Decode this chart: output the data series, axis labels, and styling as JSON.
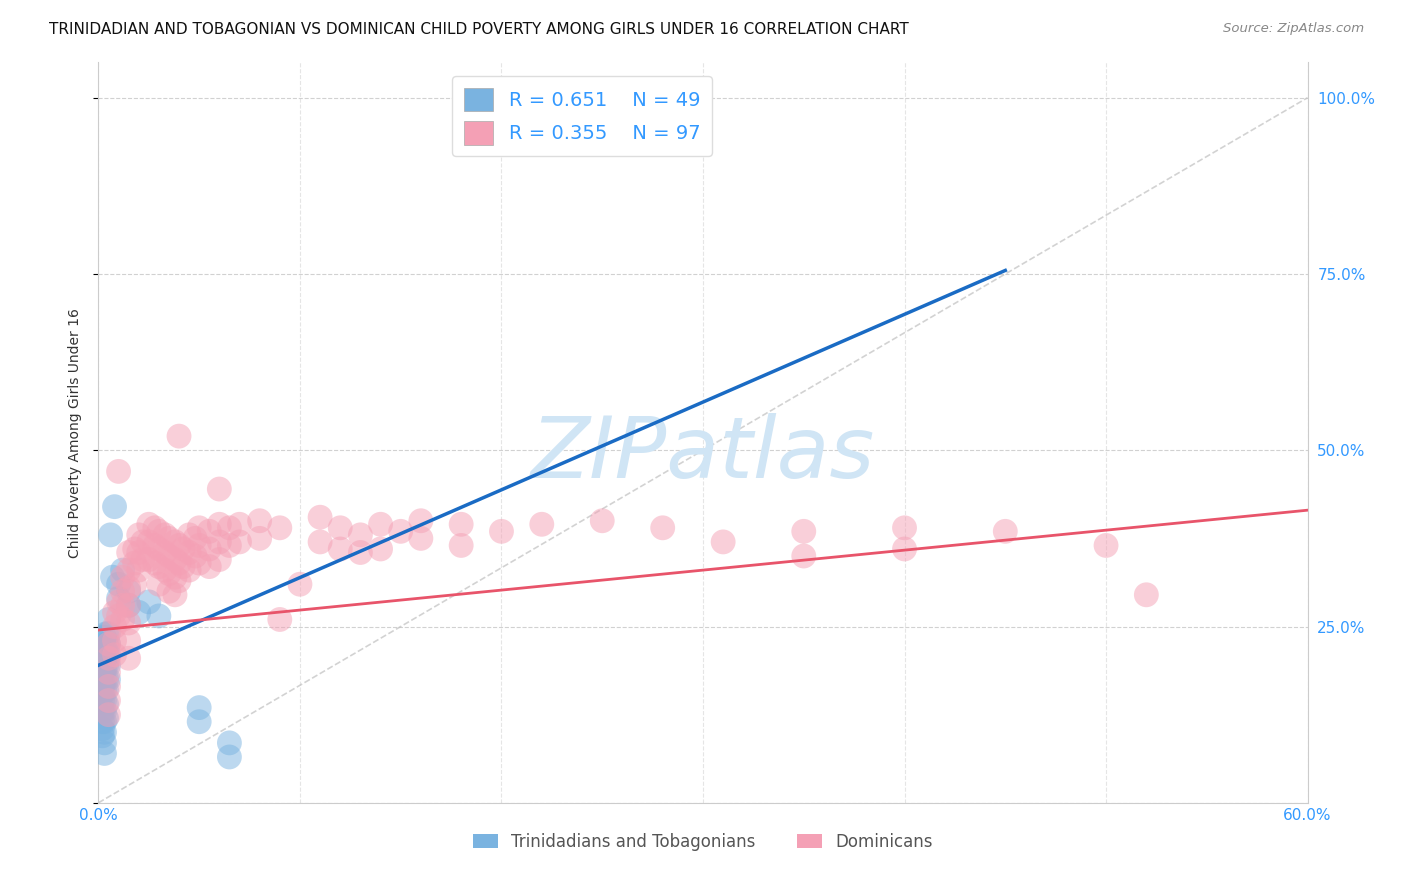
{
  "title": "TRINIDADIAN AND TOBAGONIAN VS DOMINICAN CHILD POVERTY AMONG GIRLS UNDER 16 CORRELATION CHART",
  "source": "Source: ZipAtlas.com",
  "ylabel": "Child Poverty Among Girls Under 16",
  "xlim": [
    0.0,
    0.6
  ],
  "ylim": [
    0.0,
    1.05
  ],
  "background_color": "#ffffff",
  "grid_color": "#cccccc",
  "blue_color": "#7ab3e0",
  "pink_color": "#f4a0b5",
  "blue_line_color": "#1a6bc4",
  "pink_line_color": "#e8546a",
  "dashed_line_color": "#c0c0c0",
  "watermark": "ZIPatlas",
  "watermark_color": "#d0e5f5",
  "legend_label1": "Trinidadians and Tobagonians",
  "legend_label2": "Dominicans",
  "axis_color": "#3399ff",
  "title_color": "#111111",
  "ylabel_color": "#333333",
  "blue_trend_x": [
    0.0,
    0.45
  ],
  "blue_trend_y": [
    0.195,
    0.755
  ],
  "pink_trend_x": [
    0.0,
    0.6
  ],
  "pink_trend_y": [
    0.245,
    0.415
  ],
  "blue_scatter": [
    [
      0.002,
      0.225
    ],
    [
      0.002,
      0.21
    ],
    [
      0.002,
      0.195
    ],
    [
      0.002,
      0.185
    ],
    [
      0.002,
      0.175
    ],
    [
      0.002,
      0.165
    ],
    [
      0.002,
      0.155
    ],
    [
      0.002,
      0.145
    ],
    [
      0.002,
      0.13
    ],
    [
      0.002,
      0.115
    ],
    [
      0.002,
      0.105
    ],
    [
      0.002,
      0.095
    ],
    [
      0.003,
      0.235
    ],
    [
      0.003,
      0.22
    ],
    [
      0.003,
      0.205
    ],
    [
      0.003,
      0.19
    ],
    [
      0.003,
      0.175
    ],
    [
      0.003,
      0.16
    ],
    [
      0.003,
      0.145
    ],
    [
      0.003,
      0.13
    ],
    [
      0.003,
      0.115
    ],
    [
      0.003,
      0.1
    ],
    [
      0.003,
      0.085
    ],
    [
      0.003,
      0.07
    ],
    [
      0.004,
      0.24
    ],
    [
      0.004,
      0.225
    ],
    [
      0.004,
      0.21
    ],
    [
      0.004,
      0.195
    ],
    [
      0.004,
      0.175
    ],
    [
      0.004,
      0.16
    ],
    [
      0.004,
      0.14
    ],
    [
      0.004,
      0.12
    ],
    [
      0.005,
      0.26
    ],
    [
      0.005,
      0.24
    ],
    [
      0.005,
      0.225
    ],
    [
      0.005,
      0.21
    ],
    [
      0.005,
      0.195
    ],
    [
      0.005,
      0.175
    ],
    [
      0.006,
      0.38
    ],
    [
      0.007,
      0.32
    ],
    [
      0.008,
      0.42
    ],
    [
      0.01,
      0.31
    ],
    [
      0.01,
      0.29
    ],
    [
      0.012,
      0.33
    ],
    [
      0.015,
      0.3
    ],
    [
      0.015,
      0.28
    ],
    [
      0.02,
      0.27
    ],
    [
      0.025,
      0.285
    ],
    [
      0.03,
      0.265
    ],
    [
      0.05,
      0.135
    ],
    [
      0.05,
      0.115
    ],
    [
      0.065,
      0.085
    ],
    [
      0.065,
      0.065
    ]
  ],
  "pink_scatter": [
    [
      0.005,
      0.225
    ],
    [
      0.005,
      0.205
    ],
    [
      0.005,
      0.185
    ],
    [
      0.005,
      0.165
    ],
    [
      0.005,
      0.145
    ],
    [
      0.005,
      0.125
    ],
    [
      0.008,
      0.27
    ],
    [
      0.008,
      0.25
    ],
    [
      0.008,
      0.23
    ],
    [
      0.008,
      0.21
    ],
    [
      0.01,
      0.285
    ],
    [
      0.01,
      0.265
    ],
    [
      0.01,
      0.47
    ],
    [
      0.012,
      0.32
    ],
    [
      0.012,
      0.3
    ],
    [
      0.012,
      0.28
    ],
    [
      0.012,
      0.26
    ],
    [
      0.015,
      0.355
    ],
    [
      0.015,
      0.33
    ],
    [
      0.015,
      0.305
    ],
    [
      0.015,
      0.28
    ],
    [
      0.015,
      0.255
    ],
    [
      0.015,
      0.23
    ],
    [
      0.015,
      0.205
    ],
    [
      0.018,
      0.36
    ],
    [
      0.018,
      0.34
    ],
    [
      0.018,
      0.31
    ],
    [
      0.02,
      0.38
    ],
    [
      0.02,
      0.355
    ],
    [
      0.02,
      0.33
    ],
    [
      0.022,
      0.37
    ],
    [
      0.022,
      0.345
    ],
    [
      0.025,
      0.395
    ],
    [
      0.025,
      0.37
    ],
    [
      0.025,
      0.345
    ],
    [
      0.028,
      0.39
    ],
    [
      0.028,
      0.365
    ],
    [
      0.028,
      0.34
    ],
    [
      0.03,
      0.385
    ],
    [
      0.03,
      0.36
    ],
    [
      0.03,
      0.335
    ],
    [
      0.03,
      0.31
    ],
    [
      0.033,
      0.38
    ],
    [
      0.033,
      0.355
    ],
    [
      0.033,
      0.33
    ],
    [
      0.035,
      0.375
    ],
    [
      0.035,
      0.35
    ],
    [
      0.035,
      0.325
    ],
    [
      0.035,
      0.3
    ],
    [
      0.038,
      0.37
    ],
    [
      0.038,
      0.345
    ],
    [
      0.038,
      0.32
    ],
    [
      0.038,
      0.295
    ],
    [
      0.04,
      0.365
    ],
    [
      0.04,
      0.34
    ],
    [
      0.04,
      0.315
    ],
    [
      0.04,
      0.52
    ],
    [
      0.042,
      0.36
    ],
    [
      0.042,
      0.335
    ],
    [
      0.045,
      0.38
    ],
    [
      0.045,
      0.355
    ],
    [
      0.045,
      0.33
    ],
    [
      0.048,
      0.375
    ],
    [
      0.048,
      0.35
    ],
    [
      0.05,
      0.39
    ],
    [
      0.05,
      0.365
    ],
    [
      0.05,
      0.34
    ],
    [
      0.055,
      0.385
    ],
    [
      0.055,
      0.36
    ],
    [
      0.055,
      0.335
    ],
    [
      0.06,
      0.395
    ],
    [
      0.06,
      0.37
    ],
    [
      0.06,
      0.345
    ],
    [
      0.06,
      0.445
    ],
    [
      0.065,
      0.39
    ],
    [
      0.065,
      0.365
    ],
    [
      0.07,
      0.395
    ],
    [
      0.07,
      0.37
    ],
    [
      0.08,
      0.4
    ],
    [
      0.08,
      0.375
    ],
    [
      0.09,
      0.39
    ],
    [
      0.09,
      0.26
    ],
    [
      0.1,
      0.31
    ],
    [
      0.11,
      0.405
    ],
    [
      0.11,
      0.37
    ],
    [
      0.12,
      0.39
    ],
    [
      0.12,
      0.36
    ],
    [
      0.13,
      0.38
    ],
    [
      0.13,
      0.355
    ],
    [
      0.14,
      0.395
    ],
    [
      0.14,
      0.36
    ],
    [
      0.15,
      0.385
    ],
    [
      0.16,
      0.375
    ],
    [
      0.16,
      0.4
    ],
    [
      0.18,
      0.395
    ],
    [
      0.18,
      0.365
    ],
    [
      0.2,
      0.385
    ],
    [
      0.22,
      0.395
    ],
    [
      0.25,
      0.4
    ],
    [
      0.28,
      0.39
    ],
    [
      0.31,
      0.37
    ],
    [
      0.35,
      0.385
    ],
    [
      0.35,
      0.35
    ],
    [
      0.4,
      0.39
    ],
    [
      0.4,
      0.36
    ],
    [
      0.45,
      0.385
    ],
    [
      0.5,
      0.365
    ],
    [
      0.52,
      0.295
    ]
  ]
}
